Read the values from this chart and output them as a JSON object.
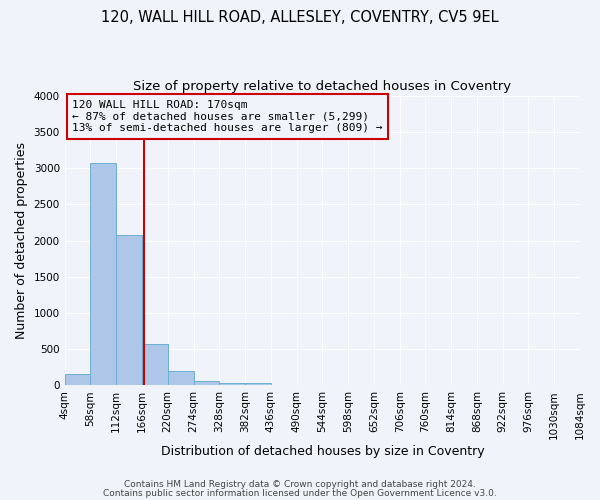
{
  "title1": "120, WALL HILL ROAD, ALLESLEY, COVENTRY, CV5 9EL",
  "title2": "Size of property relative to detached houses in Coventry",
  "xlabel": "Distribution of detached houses by size in Coventry",
  "ylabel": "Number of detached properties",
  "bin_edges": [
    4,
    58,
    112,
    166,
    220,
    274,
    328,
    382,
    436,
    490,
    544,
    598,
    652,
    706,
    760,
    814,
    868,
    922,
    976,
    1030,
    1084
  ],
  "bin_labels": [
    "4sqm",
    "58sqm",
    "112sqm",
    "166sqm",
    "220sqm",
    "274sqm",
    "328sqm",
    "382sqm",
    "436sqm",
    "490sqm",
    "544sqm",
    "598sqm",
    "652sqm",
    "706sqm",
    "760sqm",
    "814sqm",
    "868sqm",
    "922sqm",
    "976sqm",
    "1030sqm",
    "1084sqm"
  ],
  "bar_heights": [
    160,
    3070,
    2070,
    570,
    205,
    65,
    35,
    30,
    0,
    0,
    0,
    0,
    0,
    0,
    0,
    0,
    0,
    0,
    0,
    0
  ],
  "bar_color": "#aec6e8",
  "bar_edge_color": "#6baed6",
  "property_line_x": 170,
  "property_line_color": "#cc0000",
  "annotation_line1": "120 WALL HILL ROAD: 170sqm",
  "annotation_line2": "← 87% of detached houses are smaller (5,299)",
  "annotation_line3": "13% of semi-detached houses are larger (809) →",
  "annotation_box_color": "#cc0000",
  "ylim": [
    0,
    4000
  ],
  "yticks": [
    0,
    500,
    1000,
    1500,
    2000,
    2500,
    3000,
    3500,
    4000
  ],
  "footer1": "Contains HM Land Registry data © Crown copyright and database right 2024.",
  "footer2": "Contains public sector information licensed under the Open Government Licence v3.0.",
  "background_color": "#f0f4fa",
  "grid_color": "#ffffff",
  "title_fontsize": 10.5,
  "subtitle_fontsize": 9.5,
  "axis_label_fontsize": 9,
  "tick_fontsize": 7.5,
  "footer_fontsize": 6.5
}
